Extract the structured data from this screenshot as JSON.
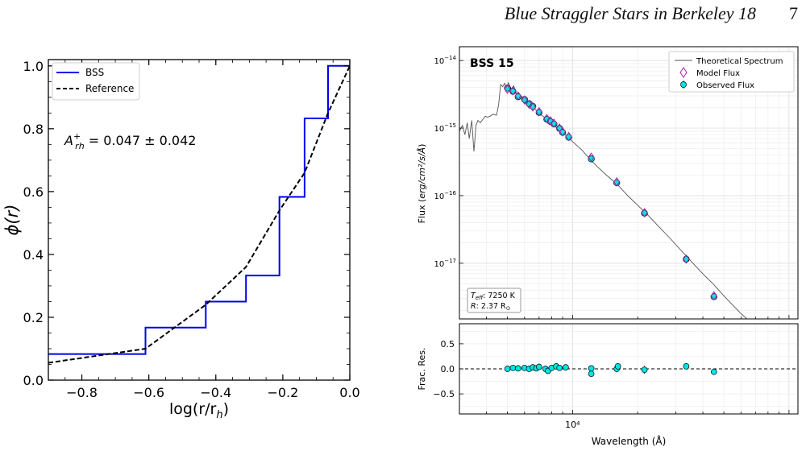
{
  "header": {
    "running_title": "Blue Straggler Stars in Berkeley 18",
    "page_number": "7"
  },
  "chart_data": [
    {
      "type": "line",
      "xlabel_main": "log(r/r",
      "xlabel_sub": "h",
      "xlabel_close": ")",
      "ylabel_main": "ϕ(r)",
      "xlim": [
        -0.9,
        0.0
      ],
      "ylim": [
        0.0,
        1.02
      ],
      "x_ticks": [
        -0.8,
        -0.6,
        -0.4,
        -0.2,
        0.0
      ],
      "x_tick_labels": [
        "−0.8",
        "−0.6",
        "−0.4",
        "−0.2",
        "0.0"
      ],
      "y_ticks": [
        0.0,
        0.2,
        0.4,
        0.6,
        0.8,
        1.0
      ],
      "y_tick_labels": [
        "0.0",
        "0.2",
        "0.4",
        "0.6",
        "0.8",
        "1.0"
      ],
      "legend_position": "top-left",
      "annotation": {
        "prefix": "A",
        "sup": "+",
        "sub": "rh",
        "value": " = 0.047 ± 0.042"
      },
      "series": [
        {
          "name": "BSS",
          "style": "step",
          "color": "#0000ee",
          "x": [
            -0.9,
            -0.61,
            -0.61,
            -0.43,
            -0.43,
            -0.31,
            -0.31,
            -0.21,
            -0.21,
            -0.135,
            -0.135,
            -0.065,
            -0.065,
            0.0
          ],
          "y": [
            0.083,
            0.083,
            0.167,
            0.167,
            0.25,
            0.25,
            0.333,
            0.333,
            0.583,
            0.583,
            0.833,
            0.833,
            1.0,
            1.0
          ]
        },
        {
          "name": "Reference",
          "style": "dashed",
          "color": "#000000",
          "x": [
            -0.9,
            -0.61,
            -0.43,
            -0.31,
            -0.21,
            -0.135,
            -0.065,
            0.0
          ],
          "y": [
            0.055,
            0.1,
            0.24,
            0.36,
            0.54,
            0.66,
            0.85,
            1.0
          ]
        }
      ]
    },
    {
      "type": "scatter",
      "title": "BSS 15",
      "xlabel": "Wavelength (Å)",
      "ylabel_prefix": "Flux (",
      "ylabel_units": "erg/cm²/s/Å",
      "ylabel_suffix": ")",
      "x_scale": "log",
      "y_scale": "log",
      "xlim": [
        3000,
        110000
      ],
      "ylim": [
        1.5e-18,
        1.6e-14
      ],
      "x_tick_labels": [
        "10⁴"
      ],
      "y_tick_labels": [
        {
          "value": 1e-14,
          "base": "10",
          "exp": "−14"
        },
        {
          "value": 1e-15,
          "base": "10",
          "exp": "−15"
        },
        {
          "value": 1e-16,
          "base": "10",
          "exp": "−16"
        },
        {
          "value": 1e-17,
          "base": "10",
          "exp": "−17"
        }
      ],
      "legend_position": "top-right",
      "legend": [
        "Theoretical Spectrum",
        "Model Flux",
        "Observed Flux"
      ],
      "params": {
        "teff_label": "T",
        "teff_sub": "eff",
        "teff_value": ": 7250 K",
        "radius_label": "R",
        "radius_value": ": 2.37 R",
        "radius_sub": "⊙"
      },
      "theoretical_spectrum": [
        [
          3000,
          9e-16
        ],
        [
          3100,
          1.1e-15
        ],
        [
          3180,
          8e-16
        ],
        [
          3260,
          1.2e-15
        ],
        [
          3330,
          7e-16
        ],
        [
          3420,
          1.3e-15
        ],
        [
          3500,
          4.5e-16
        ],
        [
          3580,
          1.1e-15
        ],
        [
          3650,
          1.3e-15
        ],
        [
          3750,
          1.2e-15
        ],
        [
          3850,
          1.35e-15
        ],
        [
          3950,
          1.5e-15
        ],
        [
          4050,
          1.45e-15
        ],
        [
          4150,
          1.5e-15
        ],
        [
          4300,
          1.6e-15
        ],
        [
          4450,
          1.55e-15
        ],
        [
          4550,
          2.2e-15
        ],
        [
          4650,
          4.4e-15
        ],
        [
          4750,
          4.1e-15
        ],
        [
          4850,
          4.6e-15
        ],
        [
          4950,
          3.9e-15
        ],
        [
          5050,
          4.7e-15
        ],
        [
          5200,
          3.8e-15
        ],
        [
          5350,
          4.2e-15
        ],
        [
          5500,
          3.2e-15
        ],
        [
          5650,
          3.1e-15
        ],
        [
          5850,
          2.9e-15
        ],
        [
          6100,
          2.6e-15
        ],
        [
          6400,
          2.2e-15
        ],
        [
          6700,
          1.9e-15
        ],
        [
          7000,
          1.65e-15
        ],
        [
          7400,
          1.45e-15
        ],
        [
          7800,
          1.3e-15
        ],
        [
          8200,
          1.1e-15
        ],
        [
          8600,
          9.6e-16
        ],
        [
          9000,
          8.5e-16
        ],
        [
          9500,
          7.4e-16
        ],
        [
          10000,
          6.3e-16
        ],
        [
          11000,
          4.8e-16
        ],
        [
          12000,
          3.5e-16
        ],
        [
          13000,
          2.7e-16
        ],
        [
          14500,
          1.95e-16
        ],
        [
          16000,
          1.5e-16
        ],
        [
          18000,
          1e-16
        ],
        [
          20000,
          7.2e-17
        ],
        [
          22000,
          5.4e-17
        ],
        [
          25000,
          3.5e-17
        ],
        [
          28000,
          2.4e-17
        ],
        [
          32000,
          1.5e-17
        ],
        [
          36000,
          1e-17
        ],
        [
          40000,
          7e-18
        ],
        [
          45000,
          4.8e-18
        ],
        [
          50000,
          3.3e-18
        ],
        [
          55000,
          2.4e-18
        ],
        [
          60000,
          1.8e-18
        ],
        [
          64000,
          1.5e-18
        ]
      ],
      "observed_flux": [
        [
          5000,
          3.9e-15
        ],
        [
          5300,
          3.5e-15
        ],
        [
          5600,
          2.9e-15
        ],
        [
          6000,
          2.65e-15
        ],
        [
          6300,
          2.3e-15
        ],
        [
          6550,
          2.1e-15
        ],
        [
          7000,
          1.7e-15
        ],
        [
          7600,
          1.35e-15
        ],
        [
          7900,
          1.25e-15
        ],
        [
          8200,
          1.15e-15
        ],
        [
          8700,
          9.9e-16
        ],
        [
          9000,
          8.6e-16
        ],
        [
          9600,
          7.3e-16
        ],
        [
          12200,
          3.5e-16
        ],
        [
          16000,
          1.55e-16
        ],
        [
          21500,
          5.5e-17
        ],
        [
          33500,
          1.15e-17
        ],
        [
          45000,
          3.2e-18
        ]
      ],
      "model_flux": [
        [
          5000,
          3.75e-15
        ],
        [
          5300,
          3.55e-15
        ],
        [
          5600,
          3e-15
        ],
        [
          6000,
          2.6e-15
        ],
        [
          6300,
          2.25e-15
        ],
        [
          6550,
          2.05e-15
        ],
        [
          7000,
          1.75e-15
        ],
        [
          7600,
          1.38e-15
        ],
        [
          7900,
          1.28e-15
        ],
        [
          8200,
          1.18e-15
        ],
        [
          8700,
          1e-15
        ],
        [
          9000,
          8.8e-16
        ],
        [
          9600,
          7.5e-16
        ],
        [
          12200,
          3.7e-16
        ],
        [
          16000,
          1.6e-16
        ],
        [
          21500,
          5.6e-17
        ],
        [
          33500,
          1.15e-17
        ],
        [
          45000,
          3.3e-18
        ]
      ]
    },
    {
      "type": "scatter",
      "ylabel": "Frac. Res.",
      "x_scale": "log",
      "xlim": [
        3000,
        110000
      ],
      "ylim": [
        -0.9,
        0.9
      ],
      "y_ticks": [
        0.5,
        0.0,
        -0.5
      ],
      "y_tick_labels": [
        "0.5",
        "0.0",
        "−0.5"
      ],
      "reference_line": 0.0,
      "residuals": [
        [
          5000,
          0.0,
          0.02
        ],
        [
          5300,
          0.02,
          0.02
        ],
        [
          5600,
          0.01,
          0.02
        ],
        [
          6000,
          0.02,
          0.02
        ],
        [
          6300,
          0.0,
          0.02
        ],
        [
          6550,
          0.03,
          0.03
        ],
        [
          6800,
          0.01,
          0.02
        ],
        [
          7000,
          0.04,
          0.03
        ],
        [
          7500,
          0.0,
          0.03
        ],
        [
          7700,
          -0.04,
          0.03
        ],
        [
          8000,
          0.02,
          0.03
        ],
        [
          8400,
          0.05,
          0.03
        ],
        [
          8700,
          0.02,
          0.03
        ],
        [
          9300,
          0.03,
          0.03
        ],
        [
          12200,
          0.01,
          0.05
        ],
        [
          12200,
          -0.1,
          0.06
        ],
        [
          16000,
          0.0,
          0.06
        ],
        [
          16200,
          0.05,
          0.06
        ],
        [
          21500,
          -0.02,
          0.08
        ],
        [
          33500,
          0.05,
          0.05
        ],
        [
          45000,
          -0.06,
          0.05
        ]
      ]
    }
  ]
}
